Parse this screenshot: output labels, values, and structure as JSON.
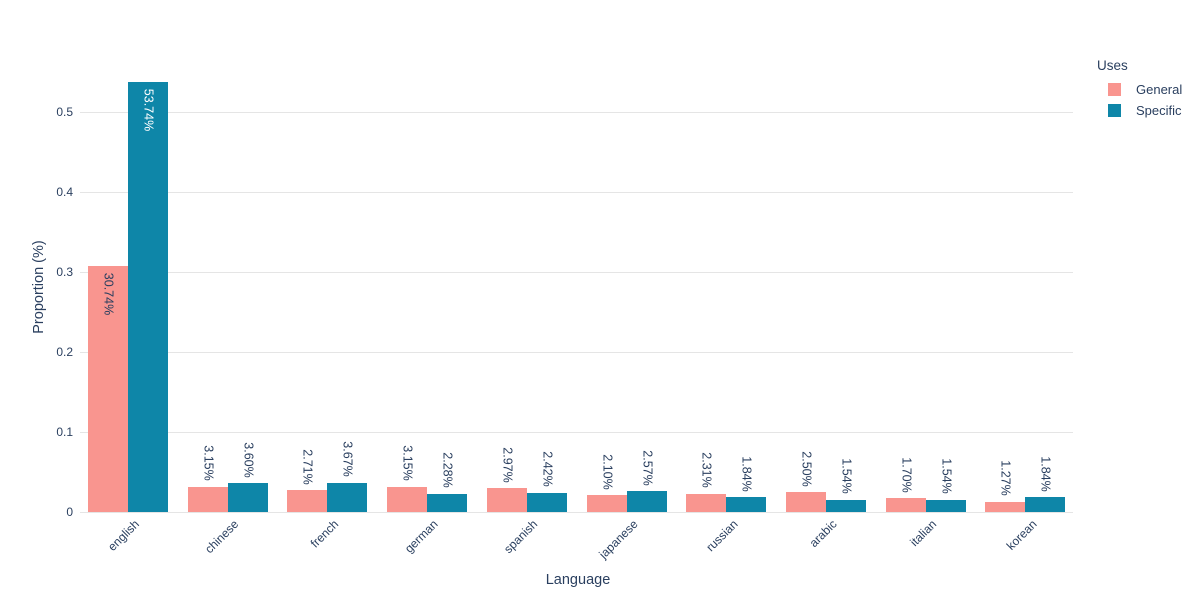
{
  "colors": {
    "text": "#2a3f5f",
    "grid": "#e5e5e5",
    "background": "#ffffff",
    "general": "#f9958f",
    "specific": "#0e86a8"
  },
  "chart_data": {
    "type": "bar",
    "title": "",
    "xlabel": "Language",
    "ylabel": "Proportion (%)",
    "legend_title": "Uses",
    "legend_position": "right",
    "grid": true,
    "x_tick_angle": -45,
    "categories": [
      "english",
      "chinese",
      "french",
      "german",
      "spanish",
      "japanese",
      "russian",
      "arabic",
      "italian",
      "korean"
    ],
    "series": [
      {
        "name": "General",
        "color": "#f9958f",
        "inside_label_color": "#2a3f5f",
        "values_pct": [
          30.74,
          3.15,
          2.71,
          3.15,
          2.97,
          2.1,
          2.31,
          2.5,
          1.7,
          1.27
        ],
        "labels": [
          "30.74%",
          "3.15%",
          "2.71%",
          "3.15%",
          "2.97%",
          "2.10%",
          "2.31%",
          "2.50%",
          "1.70%",
          "1.27%"
        ]
      },
      {
        "name": "Specific",
        "color": "#0e86a8",
        "inside_label_color": "#ffffff",
        "values_pct": [
          53.74,
          3.6,
          3.67,
          2.28,
          2.42,
          2.57,
          1.84,
          1.54,
          1.54,
          1.84
        ],
        "labels": [
          "53.74%",
          "3.60%",
          "3.67%",
          "2.28%",
          "2.42%",
          "2.57%",
          "1.84%",
          "1.54%",
          "1.54%",
          "1.84%"
        ]
      }
    ],
    "y_axis": {
      "ticks": [
        0,
        0.1,
        0.2,
        0.3,
        0.4,
        0.5
      ],
      "tick_labels": [
        "0",
        "0.1",
        "0.2",
        "0.3",
        "0.4",
        "0.5"
      ],
      "range": [
        0,
        0.565
      ]
    }
  }
}
